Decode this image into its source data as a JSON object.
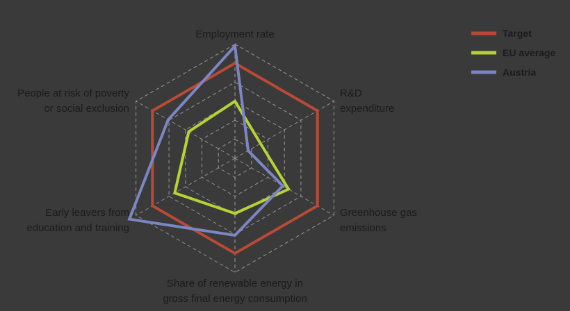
{
  "chart_data": {
    "type": "radar",
    "axes": [
      "Employment rate",
      "R&D expenditure",
      "Greenhouse gas emissions",
      "Share of renewable energy in gross final energy consumption",
      "Early leavers from education and training",
      "People at risk of poverty or social exclusion"
    ],
    "axis_label_lines": [
      [
        "Employment rate"
      ],
      [
        "R&D",
        "expenditure"
      ],
      [
        "Greenhouse gas",
        "emissions"
      ],
      [
        "Share of renewable energy in",
        "gross final energy consumption"
      ],
      [
        "Early leavers from",
        "education and training"
      ],
      [
        "People at risk of poverty",
        "or social exclusion"
      ]
    ],
    "max": 1,
    "grid_levels": 6,
    "series": [
      {
        "name": "Target",
        "color": "#b94a35",
        "values": [
          1.0,
          1.0,
          1.0,
          1.0,
          1.0,
          1.0
        ]
      },
      {
        "name": "EU average",
        "color": "#b5d334",
        "values": [
          0.6,
          0.31,
          0.65,
          0.58,
          0.73,
          0.56
        ]
      },
      {
        "name": "Austria",
        "color": "#7b86c4",
        "values": [
          1.18,
          0.16,
          0.58,
          0.81,
          1.28,
          0.81
        ]
      }
    ],
    "legend_position": "top-right",
    "grid": true
  }
}
